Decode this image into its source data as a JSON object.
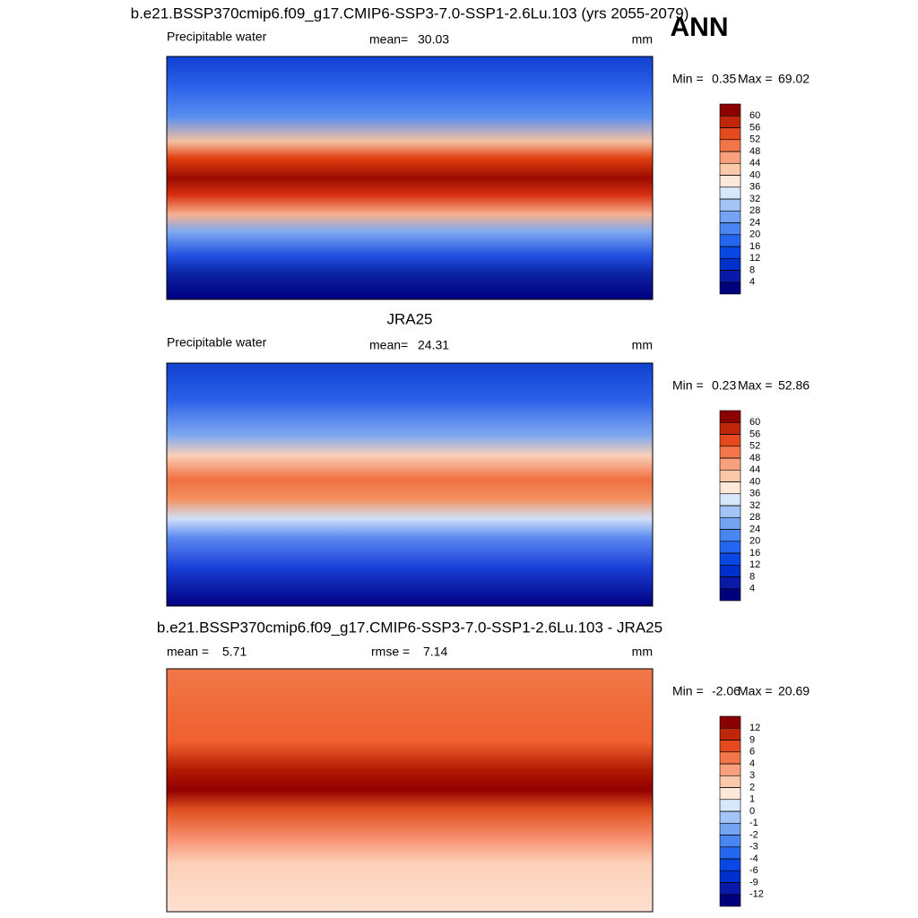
{
  "title": "ANN",
  "palette": [
    "#00007a",
    "#0a1aa8",
    "#0030cc",
    "#0a48e6",
    "#2466f0",
    "#4a86f2",
    "#72a4f2",
    "#a2c4f6",
    "#d6e8fa",
    "#fde8da",
    "#fcc8aa",
    "#f8a07c",
    "#f2764a",
    "#e44a1e",
    "#c0260a",
    "#8b0000"
  ],
  "panels": [
    {
      "title": "b.e21.BSSP370cmip6.f09_g17.CMIP6-SSP3-7.0-SSP1-2.6Lu.103 (yrs 2055-2079)",
      "variable": "Precipitable water",
      "stat_label": "mean=",
      "stat": 30.03,
      "units": "mm",
      "min_label": "Min =",
      "min": 0.35,
      "max_label": "Max =",
      "max": 69.02,
      "levels": [
        4,
        8,
        12,
        16,
        20,
        24,
        28,
        32,
        36,
        40,
        44,
        48,
        52,
        56,
        60
      ]
    },
    {
      "title": "JRA25",
      "variable": "Precipitable water",
      "stat_label": "mean=",
      "stat": 24.31,
      "units": "mm",
      "min_label": "Min =",
      "min": 0.23,
      "max_label": "Max =",
      "max": 52.86,
      "levels": [
        4,
        8,
        12,
        16,
        20,
        24,
        28,
        32,
        36,
        40,
        44,
        48,
        52,
        56,
        60
      ]
    },
    {
      "title": "b.e21.BSSP370cmip6.f09_g17.CMIP6-SSP3-7.0-SSP1-2.6Lu.103 - JRA25",
      "stat_label": "mean =",
      "stat": 5.71,
      "stat2_label": "rmse =",
      "stat2": 7.14,
      "units": "mm",
      "min_label": "Min =",
      "min": -2.06,
      "max_label": "Max =",
      "max": 20.69,
      "levels": [
        -12,
        -9,
        -6,
        -4,
        -3,
        -2,
        -1,
        0,
        1,
        2,
        3,
        4,
        6,
        9,
        12
      ]
    }
  ]
}
